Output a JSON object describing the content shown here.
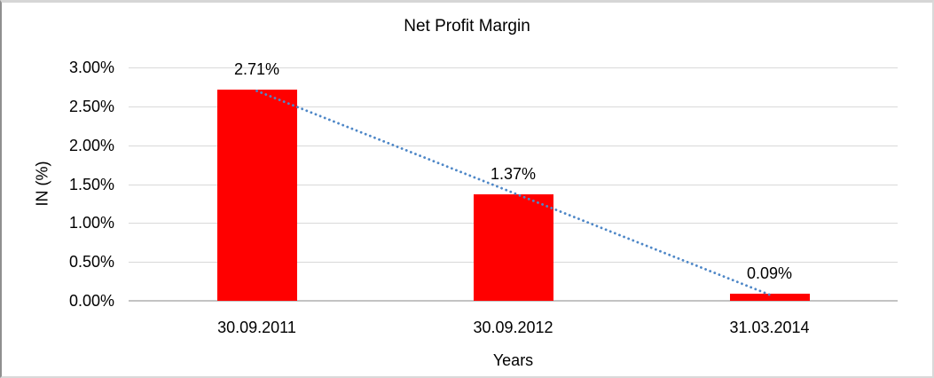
{
  "chart_data": {
    "type": "bar",
    "title": "Net Profit Margin",
    "xlabel": "Years",
    "ylabel": "IN (%)",
    "categories": [
      "30.09.2011",
      "30.09.2012",
      "31.03.2014"
    ],
    "values": [
      2.71,
      1.37,
      0.09
    ],
    "data_labels": [
      "2.71%",
      "1.37%",
      "0.09%"
    ],
    "y_ticks": [
      {
        "label": "3.00%",
        "value": 3.0
      },
      {
        "label": "2.50%",
        "value": 2.5
      },
      {
        "label": "2.00%",
        "value": 2.0
      },
      {
        "label": "1.50%",
        "value": 1.5
      },
      {
        "label": "1.00%",
        "value": 1.0
      },
      {
        "label": "0.50%",
        "value": 0.5
      },
      {
        "label": "0.00%",
        "value": 0.0
      }
    ],
    "ylim": [
      0,
      3.0
    ],
    "grid": true,
    "legend": "none",
    "bar_color": "#ff0000",
    "gridline_color": "#d9d9d9",
    "axis_line_color": "#c3c3c3",
    "text_color": "#000000",
    "trendline": {
      "type": "linear",
      "style": "dotted",
      "color": "#4e87c7",
      "spans": [
        "30.09.2011",
        "31.03.2014"
      ]
    }
  }
}
